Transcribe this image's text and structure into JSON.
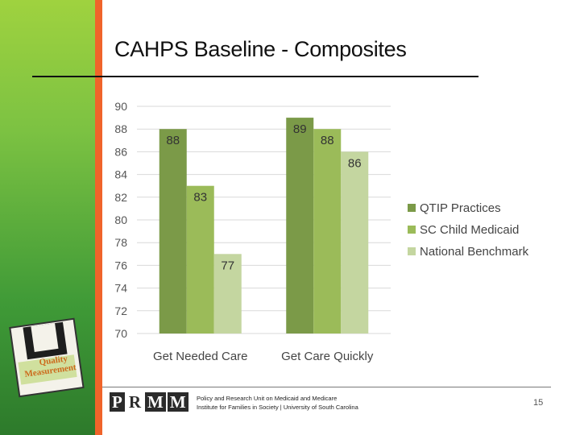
{
  "slide": {
    "title": "CAHPS Baseline - Composites",
    "footer_line1": "Policy and Research Unit on Medicaid and Medicare",
    "footer_line2": "Institute for Families in Society | University of South Carolina",
    "logo_letters": [
      "P",
      "R",
      "M",
      "M"
    ],
    "page_number": "15",
    "badge": {
      "line1": "Quality",
      "line2": "Measurement"
    }
  },
  "colors": {
    "sidebar": "#7cc242",
    "stripe": "#f0642a",
    "series": [
      "#7b9a48",
      "#9bbb59",
      "#c4d6a0"
    ]
  },
  "chart_data": {
    "type": "bar",
    "categories": [
      "Get Needed Care",
      "Get Care Quickly"
    ],
    "series": [
      {
        "name": "QTIP Practices",
        "values": [
          88,
          89
        ]
      },
      {
        "name": "SC Child Medicaid",
        "values": [
          83,
          88
        ]
      },
      {
        "name": "National Benchmark",
        "values": [
          77,
          86
        ]
      }
    ],
    "ylim": [
      70,
      90
    ],
    "yticks": [
      70,
      72,
      74,
      76,
      78,
      80,
      82,
      84,
      86,
      88,
      90
    ],
    "grid": true,
    "legend": "right",
    "data_labels": true
  }
}
